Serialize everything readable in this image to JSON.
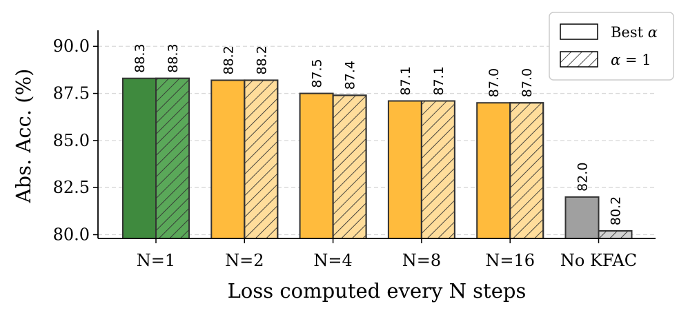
{
  "chart_data": {
    "type": "bar",
    "xlabel": "Loss computed every N steps",
    "ylabel": "Abs. Acc. (%)",
    "ylim": [
      79.8,
      90.85
    ],
    "yticks": [
      "80.0",
      "82.5",
      "85.0",
      "87.5",
      "90.0"
    ],
    "grid": "horizontal dashed",
    "legend_placement": "top-right",
    "categories": [
      "N=1",
      "N=2",
      "N=4",
      "N=8",
      "N=16",
      "No KFAC"
    ],
    "series": [
      {
        "name": "Best α",
        "legend_label": "Best",
        "legend_symbol": "α",
        "pattern": "solid",
        "values": [
          88.3,
          88.2,
          87.5,
          87.1,
          87.0,
          82.0
        ],
        "labels": [
          "88.3",
          "88.2",
          "87.5",
          "87.1",
          "87.0",
          "82.0"
        ]
      },
      {
        "name": "α = 1",
        "legend_label": "= 1",
        "legend_symbol": "α",
        "pattern": "hatched",
        "values": [
          88.3,
          88.2,
          87.4,
          87.1,
          87.0,
          80.2
        ],
        "labels": [
          "88.3",
          "88.2",
          "87.4",
          "87.1",
          "87.0",
          "80.2"
        ]
      }
    ],
    "colors": {
      "solid": [
        "#3f8a3e",
        "#ffbb3d",
        "#ffbb3d",
        "#ffbb3d",
        "#ffbb3d",
        "#a0a0a0"
      ],
      "hatched": [
        "#5aa859",
        "#ffdd9b",
        "#ffdd9b",
        "#ffdd9b",
        "#ffdd9b",
        "#d2d2d2"
      ]
    }
  }
}
